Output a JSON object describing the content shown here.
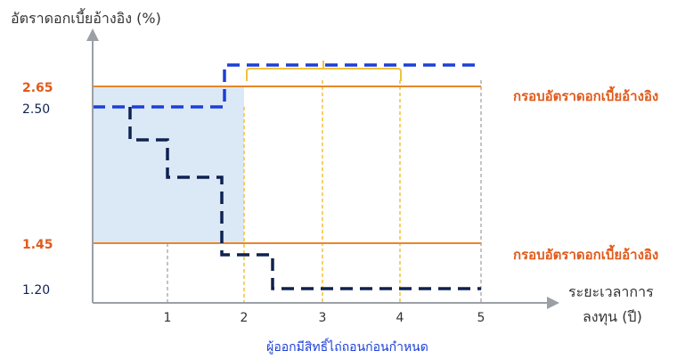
{
  "y_axis_title": "อัตราดอกเบี้ยอ้างอิง (%)",
  "x_axis_title_line1": "ระยะเวลาการ",
  "x_axis_title_line2": "ลงทุน (ปี)",
  "x_ticks": [
    "1",
    "2",
    "3",
    "4",
    "5"
  ],
  "y_labels": {
    "upper": "2.65",
    "start": "2.50",
    "lower": "1.45",
    "bottom": "1.20"
  },
  "band_labels": {
    "upper": "กรอบอัตราดอกเบี้ยอ้างอิง",
    "lower": "กรอบอัตราดอกเบี้ยอ้างอิง"
  },
  "footer_caption": "ผู้ออกมีสิทธิ์ไถ่ถอนก่อนกำหนด",
  "colors": {
    "axis": "#9aa0a6",
    "band_line": "#e8862a",
    "band_label": "#e05a1b",
    "band_fill": "#dbe8f6",
    "rising_path": "#1c3fd6",
    "falling_path": "#0f2250",
    "gold": "#f2c23a",
    "tick_guide": "#888888"
  }
}
